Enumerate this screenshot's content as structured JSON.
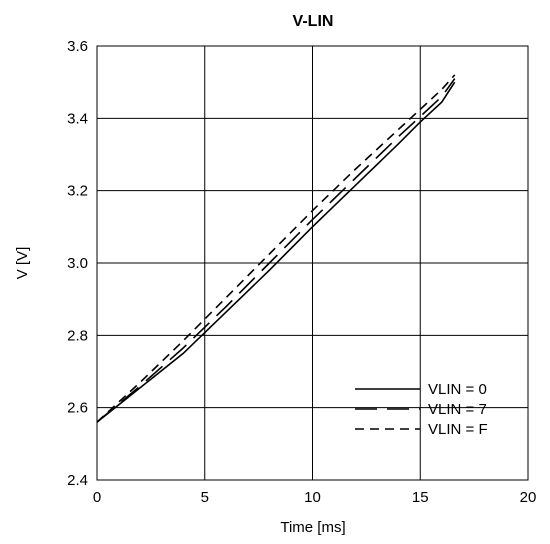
{
  "chart_data": {
    "type": "line",
    "title": "V-LIN",
    "xlabel": "Time [ms]",
    "ylabel": "V [V]",
    "xlim": [
      0,
      20
    ],
    "ylim": [
      2.4,
      3.6
    ],
    "x_ticks": [
      "0",
      "5",
      "10",
      "15",
      "20"
    ],
    "y_ticks": [
      "2.4",
      "2.6",
      "2.8",
      "3.0",
      "3.2",
      "3.4",
      "3.6"
    ],
    "grid": true,
    "legend_position": "bottom-right",
    "series": [
      {
        "name": "VLIN = 0",
        "dash": "solid",
        "x": [
          0,
          2,
          4,
          6,
          8,
          10,
          12,
          14,
          15,
          16,
          16.6
        ],
        "y": [
          2.56,
          2.655,
          2.75,
          2.865,
          2.98,
          3.1,
          3.215,
          3.33,
          3.39,
          3.445,
          3.5
        ]
      },
      {
        "name": "VLIN = 7",
        "dash": "long-dash",
        "x": [
          0,
          2,
          4,
          6,
          8,
          10,
          12,
          14,
          15,
          16,
          16.6
        ],
        "y": [
          2.56,
          2.66,
          2.765,
          2.88,
          3.0,
          3.12,
          3.235,
          3.35,
          3.405,
          3.46,
          3.51
        ]
      },
      {
        "name": "VLIN = F",
        "dash": "short-dash",
        "x": [
          0,
          2,
          4,
          6,
          8,
          10,
          12,
          14,
          15,
          16,
          16.6
        ],
        "y": [
          2.56,
          2.67,
          2.785,
          2.905,
          3.025,
          3.145,
          3.26,
          3.37,
          3.425,
          3.48,
          3.52
        ]
      }
    ]
  }
}
